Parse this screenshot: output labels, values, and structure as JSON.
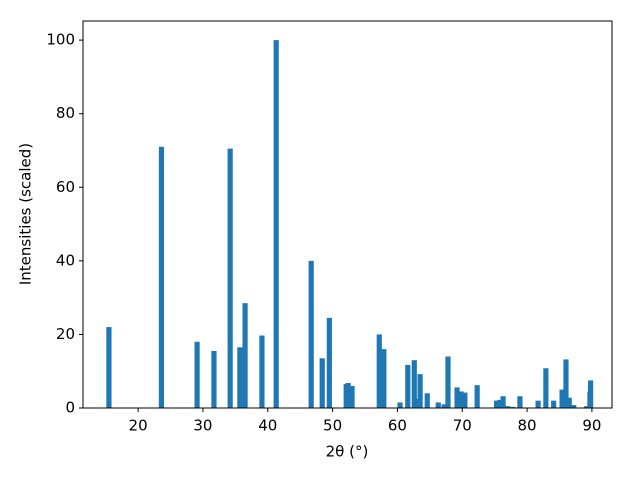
{
  "chart_data": {
    "type": "bar",
    "x_label": "2θ (°)",
    "y_label": "Intensities (scaled)",
    "x": [
      15.5,
      23.6,
      29.1,
      31.7,
      34.2,
      35.7,
      36.5,
      39.1,
      41.3,
      46.7,
      48.4,
      49.5,
      52.1,
      52.4,
      53.0,
      57.2,
      57.9,
      60.4,
      61.6,
      62.6,
      63.2,
      63.5,
      64.6,
      66.3,
      67.2,
      67.8,
      69.2,
      69.8,
      70.4,
      72.3,
      75.3,
      75.8,
      76.3,
      77.0,
      77.8,
      78.9,
      81.7,
      82.9,
      84.1,
      85.4,
      86.0,
      86.5,
      87.2,
      89.2,
      89.7,
      89.8
    ],
    "values": [
      22,
      71,
      18,
      15.5,
      70.5,
      16.5,
      28.5,
      19.7,
      100,
      40,
      13.5,
      24.5,
      6.5,
      6.8,
      6,
      20,
      16,
      1.5,
      11.7,
      13,
      2.5,
      9.2,
      4,
      1.5,
      1,
      14,
      5.6,
      4.5,
      4.2,
      6.2,
      2,
      2.2,
      3.2,
      0.5,
      0.3,
      3.2,
      2,
      10.8,
      2,
      5,
      13.2,
      2.8,
      0.8,
      0.5,
      4.5,
      7.5
    ],
    "color": "#1f77b4",
    "xlim": [
      11.5,
      93.1
    ],
    "xticks": [
      20,
      30,
      40,
      50,
      60,
      70,
      80,
      90
    ],
    "ylim": [
      0,
      105.2
    ],
    "yticks": [
      0,
      20,
      40,
      60,
      80,
      100
    ],
    "grid": false
  }
}
